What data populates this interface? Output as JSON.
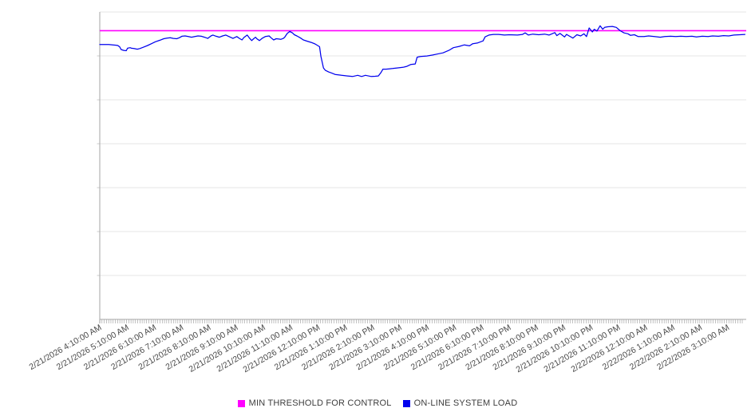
{
  "chart_data": {
    "type": "line",
    "title": "",
    "xlabel": "",
    "ylabel": "",
    "y_axis": {
      "labels_visible": false,
      "min": 0,
      "max": 100,
      "gridline_divisions": 7
    },
    "grid": "horizontal-only",
    "legend_position": "bottom-center",
    "x_label_rotation_deg": -30,
    "x_labels": [
      "2/21/2026 4:10:00 AM",
      "2/21/2026 5:10:00 AM",
      "2/21/2026 6:10:00 AM",
      "2/21/2026 7:10:00 AM",
      "2/21/2026 8:10:00 AM",
      "2/21/2026 9:10:00 AM",
      "2/21/2026 10:10:00 AM",
      "2/21/2026 11:10:00 AM",
      "2/21/2026 12:10:00 PM",
      "2/21/2026 1:10:00 PM",
      "2/21/2026 2:10:00 PM",
      "2/21/2026 3:10:00 PM",
      "2/21/2026 4:10:00 PM",
      "2/21/2026 5:10:00 PM",
      "2/21/2026 6:10:00 PM",
      "2/21/2026 7:10:00 PM",
      "2/21/2026 8:10:00 PM",
      "2/21/2026 9:10:00 PM",
      "2/21/2026 10:10:00 PM",
      "2/21/2026 11:10:00 PM",
      "2/22/2026 12:10:00 AM",
      "2/22/2026 1:10:00 AM",
      "2/22/2026 2:10:00 AM",
      "2/22/2026 3:10:00 AM"
    ],
    "series": [
      {
        "name": "MIN THRESHOLD FOR CONTROL",
        "type": "constant-threshold",
        "color": "#FF00FF",
        "value": 93.9
      },
      {
        "name": "ON-LINE SYSTEM LOAD",
        "type": "line",
        "color": "#0000EE",
        "points": [
          [
            0.0,
            89.4
          ],
          [
            0.006,
            89.4
          ],
          [
            0.014,
            89.4
          ],
          [
            0.02,
            89.3
          ],
          [
            0.025,
            89.2
          ],
          [
            0.028,
            89.1
          ],
          [
            0.031,
            88.6
          ],
          [
            0.033,
            87.8
          ],
          [
            0.037,
            87.5
          ],
          [
            0.041,
            87.4
          ],
          [
            0.043,
            88.2
          ],
          [
            0.047,
            88.4
          ],
          [
            0.049,
            88.2
          ],
          [
            0.053,
            88.1
          ],
          [
            0.058,
            87.9
          ],
          [
            0.062,
            88.1
          ],
          [
            0.068,
            88.6
          ],
          [
            0.074,
            89.1
          ],
          [
            0.08,
            89.7
          ],
          [
            0.086,
            90.3
          ],
          [
            0.093,
            90.8
          ],
          [
            0.099,
            91.3
          ],
          [
            0.104,
            91.5
          ],
          [
            0.109,
            91.6
          ],
          [
            0.114,
            91.4
          ],
          [
            0.119,
            91.3
          ],
          [
            0.123,
            91.6
          ],
          [
            0.127,
            92.1
          ],
          [
            0.132,
            92.2
          ],
          [
            0.137,
            92.0
          ],
          [
            0.142,
            91.8
          ],
          [
            0.147,
            92.0
          ],
          [
            0.152,
            92.2
          ],
          [
            0.157,
            92.1
          ],
          [
            0.162,
            91.8
          ],
          [
            0.167,
            91.4
          ],
          [
            0.172,
            92.2
          ],
          [
            0.175,
            92.5
          ],
          [
            0.18,
            92.1
          ],
          [
            0.185,
            91.8
          ],
          [
            0.19,
            92.2
          ],
          [
            0.195,
            92.5
          ],
          [
            0.2,
            92.0
          ],
          [
            0.206,
            91.4
          ],
          [
            0.212,
            92.0
          ],
          [
            0.216,
            91.4
          ],
          [
            0.22,
            90.9
          ],
          [
            0.223,
            91.7
          ],
          [
            0.228,
            92.5
          ],
          [
            0.232,
            91.4
          ],
          [
            0.235,
            90.7
          ],
          [
            0.238,
            91.3
          ],
          [
            0.241,
            91.8
          ],
          [
            0.243,
            91.3
          ],
          [
            0.247,
            90.7
          ],
          [
            0.251,
            91.4
          ],
          [
            0.256,
            92.0
          ],
          [
            0.262,
            92.2
          ],
          [
            0.265,
            91.6
          ],
          [
            0.269,
            90.9
          ],
          [
            0.273,
            91.3
          ],
          [
            0.277,
            91.2
          ],
          [
            0.28,
            91.1
          ],
          [
            0.284,
            91.4
          ],
          [
            0.286,
            91.8
          ],
          [
            0.29,
            93.0
          ],
          [
            0.294,
            93.7
          ],
          [
            0.298,
            93.2
          ],
          [
            0.301,
            92.6
          ],
          [
            0.305,
            92.2
          ],
          [
            0.31,
            91.6
          ],
          [
            0.315,
            90.9
          ],
          [
            0.321,
            90.5
          ],
          [
            0.327,
            90.1
          ],
          [
            0.333,
            89.6
          ],
          [
            0.337,
            89.1
          ],
          [
            0.34,
            88.7
          ],
          [
            0.342,
            85.7
          ],
          [
            0.346,
            81.8
          ],
          [
            0.349,
            81.0
          ],
          [
            0.354,
            80.5
          ],
          [
            0.359,
            80.1
          ],
          [
            0.364,
            79.7
          ],
          [
            0.374,
            79.4
          ],
          [
            0.383,
            79.2
          ],
          [
            0.391,
            79.0
          ],
          [
            0.399,
            79.4
          ],
          [
            0.405,
            79.0
          ],
          [
            0.411,
            79.4
          ],
          [
            0.42,
            79.0
          ],
          [
            0.426,
            79.1
          ],
          [
            0.431,
            79.2
          ],
          [
            0.435,
            80.3
          ],
          [
            0.438,
            81.4
          ],
          [
            0.443,
            81.4
          ],
          [
            0.448,
            81.5
          ],
          [
            0.453,
            81.6
          ],
          [
            0.46,
            81.8
          ],
          [
            0.469,
            82.0
          ],
          [
            0.475,
            82.3
          ],
          [
            0.481,
            82.9
          ],
          [
            0.488,
            83.1
          ],
          [
            0.491,
            85.3
          ],
          [
            0.496,
            85.5
          ],
          [
            0.506,
            85.7
          ],
          [
            0.515,
            86.0
          ],
          [
            0.522,
            86.3
          ],
          [
            0.531,
            86.7
          ],
          [
            0.54,
            87.5
          ],
          [
            0.547,
            88.4
          ],
          [
            0.556,
            88.8
          ],
          [
            0.564,
            89.3
          ],
          [
            0.572,
            89.0
          ],
          [
            0.577,
            89.7
          ],
          [
            0.584,
            89.9
          ],
          [
            0.593,
            90.6
          ],
          [
            0.596,
            91.9
          ],
          [
            0.602,
            92.5
          ],
          [
            0.609,
            92.7
          ],
          [
            0.617,
            92.7
          ],
          [
            0.626,
            92.5
          ],
          [
            0.633,
            92.6
          ],
          [
            0.646,
            92.5
          ],
          [
            0.654,
            92.7
          ],
          [
            0.658,
            93.2
          ],
          [
            0.663,
            92.5
          ],
          [
            0.67,
            92.8
          ],
          [
            0.679,
            92.6
          ],
          [
            0.688,
            92.8
          ],
          [
            0.695,
            92.5
          ],
          [
            0.704,
            93.3
          ],
          [
            0.707,
            92.3
          ],
          [
            0.712,
            93.0
          ],
          [
            0.719,
            91.9
          ],
          [
            0.722,
            92.7
          ],
          [
            0.726,
            92.2
          ],
          [
            0.732,
            91.5
          ],
          [
            0.738,
            92.6
          ],
          [
            0.744,
            92.2
          ],
          [
            0.749,
            92.9
          ],
          [
            0.753,
            92.0
          ],
          [
            0.757,
            94.8
          ],
          [
            0.762,
            93.5
          ],
          [
            0.765,
            94.4
          ],
          [
            0.769,
            93.8
          ],
          [
            0.774,
            95.5
          ],
          [
            0.778,
            94.4
          ],
          [
            0.781,
            95.0
          ],
          [
            0.786,
            95.2
          ],
          [
            0.793,
            95.3
          ],
          [
            0.799,
            95.0
          ],
          [
            0.805,
            93.9
          ],
          [
            0.811,
            93.2
          ],
          [
            0.817,
            92.9
          ],
          [
            0.821,
            92.4
          ],
          [
            0.827,
            92.6
          ],
          [
            0.833,
            92.0
          ],
          [
            0.842,
            92.0
          ],
          [
            0.849,
            92.2
          ],
          [
            0.858,
            92.0
          ],
          [
            0.867,
            91.8
          ],
          [
            0.874,
            92.0
          ],
          [
            0.883,
            92.1
          ],
          [
            0.891,
            92.0
          ],
          [
            0.899,
            92.1
          ],
          [
            0.907,
            92.0
          ],
          [
            0.916,
            92.1
          ],
          [
            0.923,
            91.9
          ],
          [
            0.932,
            92.1
          ],
          [
            0.941,
            92.0
          ],
          [
            0.948,
            92.2
          ],
          [
            0.957,
            92.1
          ],
          [
            0.965,
            92.3
          ],
          [
            0.973,
            92.2
          ],
          [
            0.981,
            92.5
          ],
          [
            0.99,
            92.6
          ],
          [
            0.998,
            92.7
          ]
        ]
      }
    ],
    "colors": {
      "gridline": "#E6E6E6",
      "axis": "#A6A6A6",
      "minor_tick": "#999999",
      "label_text": "#4a4a4a"
    }
  }
}
